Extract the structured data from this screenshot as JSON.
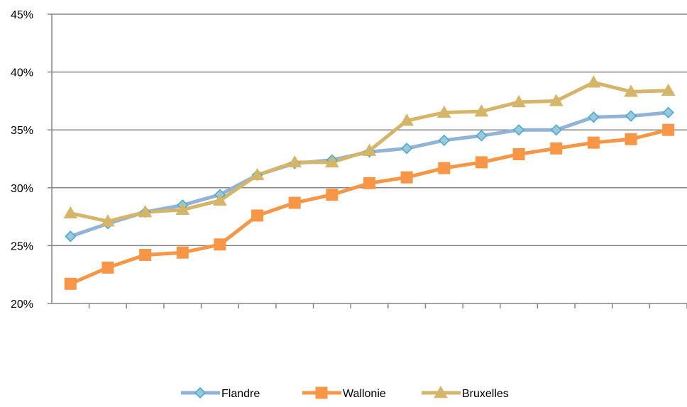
{
  "chart_data": {
    "type": "line",
    "title": "",
    "xlabel": "",
    "ylabel": "",
    "ylim": [
      20,
      45
    ],
    "y_tick_labels": [
      "45%",
      "40%",
      "35%",
      "30%",
      "25%",
      "20%"
    ],
    "y_ticks": [
      45,
      40,
      35,
      30,
      25,
      20
    ],
    "grid": true,
    "legend_position": "bottom",
    "series": [
      {
        "name": "Flandre",
        "color": "#93B3D6",
        "marker": "diamond",
        "marker_color": "#4BACC6",
        "values": [
          25.8,
          26.9,
          27.9,
          28.5,
          29.4,
          31.1,
          32.1,
          32.4,
          33.1,
          33.4,
          34.1,
          34.5,
          35.0,
          35.0,
          36.1,
          36.2,
          36.5
        ]
      },
      {
        "name": "Wallonie",
        "color": "#F79646",
        "marker": "square",
        "marker_color": "#F79646",
        "values": [
          21.7,
          23.1,
          24.2,
          24.4,
          25.1,
          27.6,
          28.7,
          29.4,
          30.4,
          30.9,
          31.7,
          32.2,
          32.9,
          33.4,
          33.9,
          34.2,
          35.0
        ]
      },
      {
        "name": "Bruxelles",
        "color": "#D4B56A",
        "marker": "triangle",
        "marker_color": "#D4B56A",
        "values": [
          27.8,
          27.1,
          27.9,
          28.1,
          28.9,
          31.1,
          32.2,
          32.2,
          33.2,
          35.8,
          36.5,
          36.6,
          37.4,
          37.5,
          39.1,
          38.3,
          38.4
        ]
      }
    ]
  }
}
